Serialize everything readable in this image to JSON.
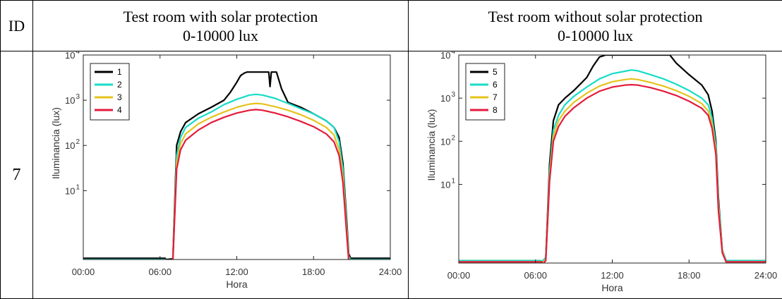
{
  "table": {
    "id_header": "ID",
    "col1_title": "Test room with solar protection",
    "col1_range": "0-10000 lux",
    "col2_title": "Test room without solar protection",
    "col2_range": "0-10000 lux",
    "row_id": "7"
  },
  "chart_data": [
    {
      "type": "line",
      "title": "",
      "xlabel": "Hora",
      "ylabel": "Iluminancia (lux)",
      "xticks": [
        "00:00",
        "06:00",
        "12:00",
        "18:00",
        "24:00"
      ],
      "xlim": [
        0,
        24
      ],
      "ylim": [
        0.3,
        10000
      ],
      "yscale": "log",
      "ytick_labels": [
        {
          "base": "10",
          "exp": "1"
        },
        {
          "base": "10",
          "exp": "2"
        },
        {
          "base": "10",
          "exp": "3"
        },
        {
          "base": "10",
          "exp": "4"
        }
      ],
      "legend": "top-left",
      "grid": false,
      "series": [
        {
          "name": "1",
          "color": "#000000",
          "x": [
            0,
            6.4,
            6.45,
            7.0,
            7.3,
            7.6,
            8.0,
            9.0,
            10.0,
            11.0,
            11.5,
            12.0,
            12.3,
            12.6,
            12.8,
            13.0,
            13.5,
            14.0,
            14.3,
            14.5,
            14.6,
            14.7,
            14.9,
            15.1,
            15.5,
            16.0,
            17.0,
            18.0,
            19.0,
            19.6,
            20.0,
            20.3,
            20.6,
            20.75,
            20.9,
            24
          ],
          "y": [
            0.32,
            0.32,
            0.3,
            0.31,
            100,
            200,
            320,
            500,
            700,
            1000,
            1500,
            2500,
            3500,
            4000,
            4200,
            4200,
            4200,
            4200,
            4200,
            4200,
            2000,
            4200,
            4200,
            4200,
            1800,
            900,
            700,
            500,
            350,
            250,
            150,
            40,
            2,
            0.4,
            0.32,
            0.32
          ]
        },
        {
          "name": "2",
          "color": "#17dcc8",
          "x": [
            0,
            6.4,
            6.45,
            7.0,
            7.3,
            7.6,
            8.0,
            9.0,
            10.0,
            11.0,
            12.0,
            13.0,
            13.5,
            14.0,
            15.0,
            16.0,
            17.0,
            18.0,
            19.0,
            19.6,
            20.0,
            20.3,
            20.6,
            20.75,
            20.9,
            24
          ],
          "y": [
            0.3,
            0.3,
            0.28,
            0.29,
            60,
            150,
            250,
            400,
            550,
            800,
            1050,
            1300,
            1350,
            1300,
            1100,
            850,
            650,
            500,
            350,
            250,
            120,
            30,
            1.5,
            0.35,
            0.3,
            0.3
          ]
        },
        {
          "name": "3",
          "color": "#e6c31c",
          "x": [
            0,
            6.4,
            6.45,
            7.0,
            7.3,
            7.6,
            8.0,
            9.0,
            10.0,
            11.0,
            12.0,
            13.0,
            13.5,
            14.0,
            15.0,
            16.0,
            17.0,
            18.0,
            19.0,
            19.6,
            20.0,
            20.3,
            20.6,
            20.75,
            20.9,
            24
          ],
          "y": [
            0.28,
            0.28,
            0.27,
            0.28,
            40,
            110,
            180,
            300,
            420,
            550,
            700,
            820,
            850,
            830,
            720,
            600,
            480,
            360,
            250,
            170,
            80,
            20,
            1.2,
            0.3,
            0.28,
            0.28
          ]
        },
        {
          "name": "4",
          "color": "#e41b3c",
          "x": [
            0,
            6.4,
            6.45,
            6.55,
            6.8,
            6.95,
            7.0,
            7.3,
            7.6,
            8.0,
            9.0,
            10.0,
            11.0,
            12.0,
            13.0,
            13.5,
            14.0,
            15.0,
            16.0,
            17.0,
            18.0,
            19.0,
            19.6,
            20.0,
            20.3,
            20.6,
            20.75,
            20.9,
            24
          ],
          "y": [
            0.27,
            0.27,
            0.26,
            0.27,
            0.27,
            0.18,
            0.27,
            30,
            80,
            130,
            220,
            320,
            420,
            520,
            600,
            620,
            600,
            520,
            430,
            340,
            260,
            180,
            120,
            60,
            15,
            1,
            0.28,
            0.27,
            0.27
          ]
        }
      ]
    },
    {
      "type": "line",
      "title": "",
      "xlabel": "Hora",
      "ylabel": "Iluminancia (lux)",
      "xticks": [
        "00:00",
        "06:00",
        "12:00",
        "18:00",
        "24:00"
      ],
      "xlim": [
        0,
        24
      ],
      "ylim": [
        0.15,
        10000
      ],
      "yscale": "log",
      "ytick_labels": [
        {
          "base": "10",
          "exp": "1"
        },
        {
          "base": "10",
          "exp": "2"
        },
        {
          "base": "10",
          "exp": "3"
        },
        {
          "base": "10",
          "exp": "4"
        }
      ],
      "legend": "top-left",
      "grid": false,
      "series": [
        {
          "name": "5",
          "color": "#000000",
          "x": [
            0,
            6.4,
            6.5,
            6.8,
            7.1,
            7.4,
            7.8,
            8.3,
            9.0,
            10.0,
            10.5,
            11.0,
            11.5,
            12.0,
            16.0,
            16.5,
            17.0,
            18.0,
            19.0,
            19.5,
            19.8,
            20.1,
            20.3,
            20.6,
            20.9,
            24
          ],
          "y": [
            0.17,
            0.17,
            0.16,
            0.2,
            30,
            300,
            700,
            1000,
            1500,
            3000,
            5500,
            9000,
            10000,
            10000,
            10000,
            10000,
            6500,
            3500,
            2000,
            1200,
            500,
            100,
            5,
            0.3,
            0.17,
            0.17
          ]
        },
        {
          "name": "6",
          "color": "#17dcc8",
          "x": [
            0,
            6.4,
            6.5,
            6.8,
            7.1,
            7.4,
            7.8,
            8.3,
            9.0,
            10.0,
            11.0,
            12.0,
            13.0,
            13.5,
            14.0,
            15.0,
            16.0,
            17.0,
            18.0,
            19.0,
            19.5,
            19.8,
            20.1,
            20.3,
            20.6,
            20.9,
            24
          ],
          "y": [
            0.17,
            0.17,
            0.16,
            0.2,
            20,
            180,
            400,
            700,
            1100,
            1800,
            2800,
            3700,
            4200,
            4500,
            4300,
            3500,
            2800,
            2100,
            1500,
            1000,
            700,
            350,
            80,
            4,
            0.3,
            0.17,
            0.17
          ]
        },
        {
          "name": "7",
          "color": "#e6c31c",
          "x": [
            0,
            6.4,
            6.5,
            6.8,
            7.1,
            7.4,
            7.8,
            8.3,
            9.0,
            10.0,
            11.0,
            12.0,
            13.0,
            13.5,
            14.0,
            15.0,
            16.0,
            17.0,
            18.0,
            19.0,
            19.5,
            19.8,
            20.1,
            20.3,
            20.6,
            20.9,
            24
          ],
          "y": [
            0.16,
            0.16,
            0.15,
            0.18,
            15,
            130,
            300,
            500,
            800,
            1300,
            1900,
            2400,
            2700,
            2800,
            2700,
            2300,
            1900,
            1500,
            1100,
            750,
            500,
            250,
            60,
            3,
            0.28,
            0.16,
            0.16
          ]
        },
        {
          "name": "8",
          "color": "#e41b3c",
          "x": [
            0,
            6.4,
            6.5,
            6.6,
            6.7,
            6.8,
            7.1,
            7.4,
            7.8,
            8.3,
            9.0,
            10.0,
            11.0,
            12.0,
            13.0,
            13.5,
            14.0,
            15.0,
            16.0,
            17.0,
            18.0,
            19.0,
            19.5,
            19.8,
            20.1,
            20.3,
            20.6,
            20.9,
            24
          ],
          "y": [
            0.16,
            0.16,
            0.16,
            0.1,
            0.16,
            0.17,
            12,
            100,
            220,
            380,
            600,
            1000,
            1450,
            1800,
            2000,
            2050,
            2000,
            1750,
            1450,
            1150,
            850,
            580,
            400,
            200,
            50,
            2.5,
            0.26,
            0.16,
            0.16
          ]
        }
      ]
    }
  ]
}
